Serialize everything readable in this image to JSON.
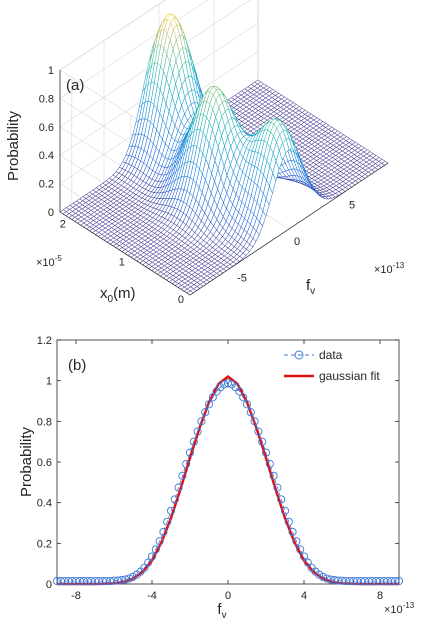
{
  "chart_data": [
    {
      "type": "surface",
      "panel_label": "(a)",
      "zlabel": "Probability",
      "xlabel": "f",
      "xlabel_sub": "v",
      "ylabel": "x",
      "ylabel_sub": "0",
      "ylabel_unit": "(m)",
      "x_multiplier": "×10",
      "x_multiplier_exp": "-13",
      "y_multiplier": "×10",
      "y_multiplier_exp": "-5",
      "x_ticks": [
        "-5",
        "0",
        "5"
      ],
      "x_tick_values": [
        -5,
        0,
        5
      ],
      "y_ticks": [
        "0",
        "1",
        "2"
      ],
      "y_tick_values": [
        0,
        1,
        2
      ],
      "z_ticks": [
        "0",
        "0.2",
        "0.4",
        "0.6",
        "0.8",
        "1"
      ],
      "z_tick_values": [
        0,
        0.2,
        0.4,
        0.6,
        0.8,
        1
      ],
      "xlim": [
        -9,
        9
      ],
      "ylim": [
        0,
        2.2
      ],
      "zlim": [
        0,
        1
      ],
      "grid": true,
      "colormap": "parula",
      "peaks": [
        {
          "f": 0.0,
          "x0": 2.0,
          "probability": 0.98
        },
        {
          "f": -1.5,
          "x0": 1.0,
          "probability": 0.8
        },
        {
          "f": 0.0,
          "x0": 0.2,
          "probability": 0.7
        }
      ]
    },
    {
      "type": "line",
      "panel_label": "(b)",
      "xlabel": "f",
      "xlabel_sub": "v",
      "ylabel": "Probability",
      "x_multiplier": "×10",
      "x_multiplier_exp": "-13",
      "xlim": [
        -9,
        9
      ],
      "ylim": [
        0,
        1.2
      ],
      "x_ticks": [
        "-8",
        "-4",
        "0",
        "4",
        "8"
      ],
      "x_tick_values": [
        -8,
        -4,
        0,
        4,
        8
      ],
      "y_ticks": [
        "0",
        "0.2",
        "0.4",
        "0.6",
        "0.8",
        "1",
        "1.2"
      ],
      "y_tick_values": [
        0,
        0.2,
        0.4,
        0.6,
        0.8,
        1,
        1.2
      ],
      "legend_position": "top-right",
      "series": [
        {
          "name": "data",
          "style": "dashed-circles",
          "color": "#3c78d8",
          "x": [
            -9.0,
            -8.8,
            -8.6,
            -8.4,
            -8.2,
            -8.0,
            -7.8,
            -7.6,
            -7.4,
            -7.2,
            -7.0,
            -6.8,
            -6.6,
            -6.4,
            -6.2,
            -6.0,
            -5.8,
            -5.6,
            -5.4,
            -5.2,
            -5.0,
            -4.8,
            -4.6,
            -4.4,
            -4.2,
            -4.0,
            -3.8,
            -3.6,
            -3.4,
            -3.2,
            -3.0,
            -2.8,
            -2.6,
            -2.4,
            -2.2,
            -2.0,
            -1.8,
            -1.6,
            -1.4,
            -1.2,
            -1.0,
            -0.8,
            -0.6,
            -0.4,
            -0.2,
            0.0,
            0.2,
            0.4,
            0.6,
            0.8,
            1.0,
            1.2,
            1.4,
            1.6,
            1.8,
            2.0,
            2.2,
            2.4,
            2.6,
            2.8,
            3.0,
            3.2,
            3.4,
            3.6,
            3.8,
            4.0,
            4.2,
            4.4,
            4.6,
            4.8,
            5.0,
            5.2,
            5.4,
            5.6,
            5.8,
            6.0,
            6.2,
            6.4,
            6.6,
            6.8,
            7.0,
            7.2,
            7.4,
            7.6,
            7.8,
            8.0,
            8.2,
            8.4,
            8.6,
            8.8,
            9.0
          ],
          "y": [
            0.015,
            0.015,
            0.015,
            0.015,
            0.015,
            0.015,
            0.015,
            0.015,
            0.015,
            0.015,
            0.015,
            0.015,
            0.015,
            0.015,
            0.015,
            0.016,
            0.017,
            0.019,
            0.022,
            0.027,
            0.035,
            0.046,
            0.061,
            0.08,
            0.105,
            0.135,
            0.17,
            0.21,
            0.256,
            0.306,
            0.36,
            0.416,
            0.474,
            0.532,
            0.59,
            0.646,
            0.7,
            0.75,
            0.8,
            0.845,
            0.884,
            0.918,
            0.947,
            0.968,
            0.982,
            0.987,
            0.982,
            0.968,
            0.947,
            0.918,
            0.884,
            0.845,
            0.8,
            0.75,
            0.7,
            0.646,
            0.59,
            0.532,
            0.474,
            0.416,
            0.36,
            0.306,
            0.256,
            0.21,
            0.17,
            0.135,
            0.105,
            0.08,
            0.061,
            0.046,
            0.035,
            0.027,
            0.022,
            0.019,
            0.017,
            0.016,
            0.015,
            0.015,
            0.015,
            0.015,
            0.015,
            0.015,
            0.015,
            0.015,
            0.015,
            0.015,
            0.015,
            0.015,
            0.015,
            0.015,
            0.015
          ]
        },
        {
          "name": "gaussian fit",
          "style": "solid",
          "color": "#dd1111",
          "x": [
            -9.0,
            -8.5,
            -8.0,
            -7.5,
            -7.0,
            -6.5,
            -6.0,
            -5.5,
            -5.0,
            -4.5,
            -4.0,
            -3.5,
            -3.0,
            -2.5,
            -2.0,
            -1.5,
            -1.0,
            -0.5,
            0.0,
            0.5,
            1.0,
            1.5,
            2.0,
            2.5,
            3.0,
            3.5,
            4.0,
            4.5,
            5.0,
            5.5,
            6.0,
            6.5,
            7.0,
            7.5,
            8.0,
            8.5,
            9.0
          ],
          "y": [
            0.0,
            0.0,
            0.0,
            0.0,
            0.0,
            0.001,
            0.003,
            0.01,
            0.026,
            0.059,
            0.116,
            0.205,
            0.324,
            0.467,
            0.62,
            0.767,
            0.894,
            0.984,
            1.02,
            0.984,
            0.894,
            0.767,
            0.62,
            0.467,
            0.324,
            0.205,
            0.116,
            0.059,
            0.026,
            0.01,
            0.003,
            0.001,
            0.0,
            0.0,
            0.0,
            0.0,
            0.0
          ]
        }
      ]
    }
  ]
}
